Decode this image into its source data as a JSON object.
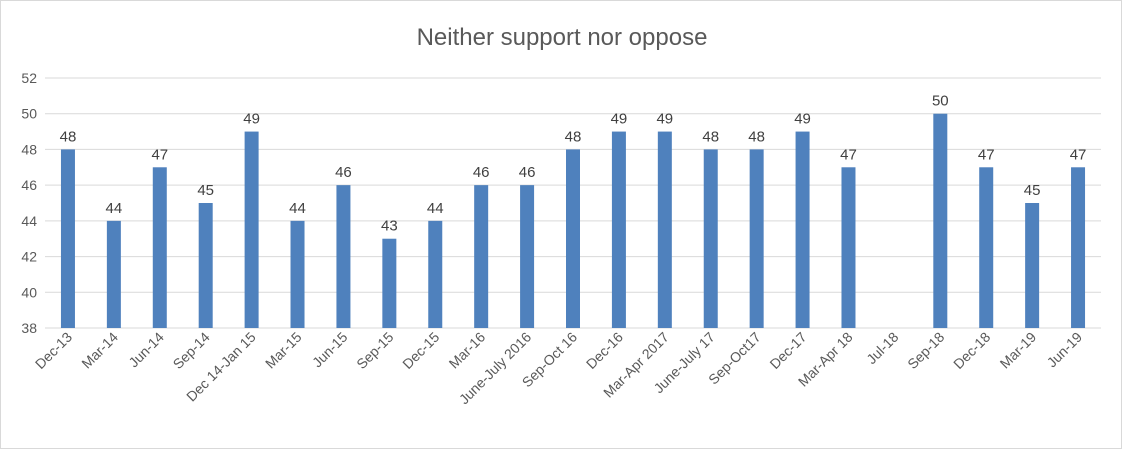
{
  "chart_data": {
    "type": "bar",
    "title": "Neither support nor oppose",
    "xlabel": "",
    "ylabel": "",
    "ylim": [
      38,
      52
    ],
    "yticks": [
      38,
      40,
      42,
      44,
      46,
      48,
      50,
      52
    ],
    "grid": true,
    "legend": "none",
    "bar_color": "#4f81bd",
    "categories": [
      "Dec-13",
      "Mar-14",
      "Jun-14",
      "Sep-14",
      "Dec 14-Jan 15",
      "Mar-15",
      "Jun-15",
      "Sep-15",
      "Dec-15",
      "Mar-16",
      "June-July 2016",
      "Sep-Oct 16",
      "Dec-16",
      "Mar-Apr 2017",
      "June-July 17",
      "Sep-Oct17",
      "Dec-17",
      "Mar-Apr 18",
      "Jul-18",
      "Sep-18",
      "Dec-18",
      "Mar-19",
      "Jun-19"
    ],
    "values": [
      48,
      44,
      47,
      45,
      49,
      44,
      46,
      43,
      44,
      46,
      46,
      48,
      49,
      49,
      48,
      48,
      49,
      47,
      null,
      50,
      47,
      45,
      47
    ]
  }
}
